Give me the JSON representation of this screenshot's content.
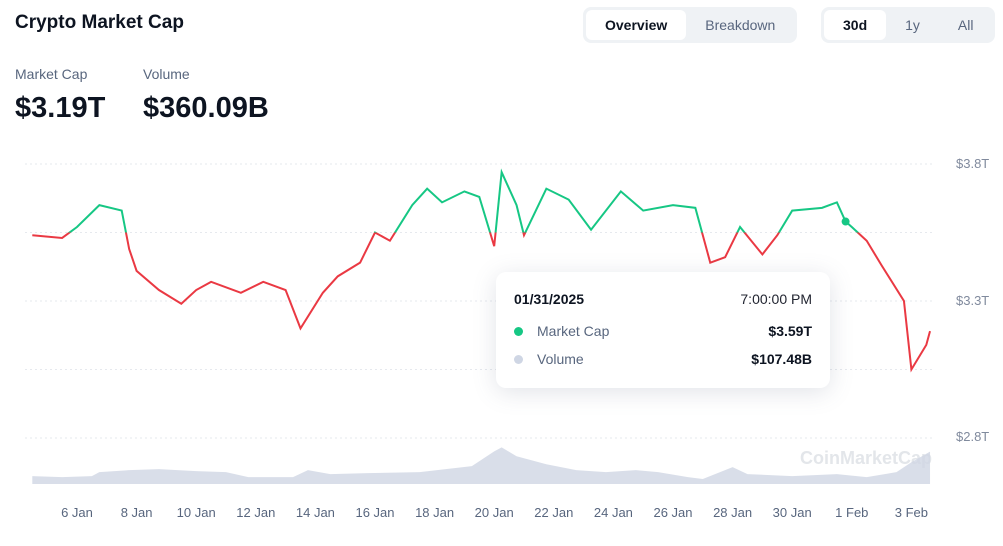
{
  "header": {
    "title": "Crypto Market Cap",
    "view_tabs": [
      {
        "label": "Overview",
        "active": true
      },
      {
        "label": "Breakdown",
        "active": false
      }
    ],
    "range_tabs": [
      {
        "label": "30d",
        "active": true
      },
      {
        "label": "1y",
        "active": false
      },
      {
        "label": "All",
        "active": false
      }
    ]
  },
  "stats": {
    "market_cap_label": "Market Cap",
    "market_cap_value": "$3.19T",
    "volume_label": "Volume",
    "volume_value": "$360.09B"
  },
  "tooltip": {
    "date": "01/31/2025",
    "time": "7:00:00 PM",
    "market_cap_label": "Market Cap",
    "market_cap_value": "$3.59T",
    "volume_label": "Volume",
    "volume_value": "$107.48B"
  },
  "watermark": "CoinMarketCap",
  "colors": {
    "up": "#16c784",
    "down": "#ea3943",
    "volume": "#cfd6e4",
    "grid": "#e6e9ee"
  },
  "chart_data": {
    "type": "line",
    "ylim": [
      2.8,
      3.8
    ],
    "yunit": "T",
    "yticks": [
      "$3.8T",
      "$3.3T",
      "$2.8T"
    ],
    "xticks": [
      "6 Jan",
      "8 Jan",
      "10 Jan",
      "12 Jan",
      "14 Jan",
      "16 Jan",
      "18 Jan",
      "20 Jan",
      "22 Jan",
      "24 Jan",
      "26 Jan",
      "28 Jan",
      "30 Jan",
      "1 Feb",
      "3 Feb"
    ],
    "baseline": 3.55,
    "series": [
      {
        "name": "Market Cap",
        "type": "line",
        "x": [
          "2025-01-04T12",
          "2025-01-05T12",
          "2025-01-06T00",
          "2025-01-06T18",
          "2025-01-07T12",
          "2025-01-07T18",
          "2025-01-08T00",
          "2025-01-08T18",
          "2025-01-09T12",
          "2025-01-10T00",
          "2025-01-10T12",
          "2025-01-11T12",
          "2025-01-12T06",
          "2025-01-13T00",
          "2025-01-13T12",
          "2025-01-14T06",
          "2025-01-14T18",
          "2025-01-15T12",
          "2025-01-16T00",
          "2025-01-16T12",
          "2025-01-17T06",
          "2025-01-17T18",
          "2025-01-18T06",
          "2025-01-19T00",
          "2025-01-19T12",
          "2025-01-20T00",
          "2025-01-20T06",
          "2025-01-20T18",
          "2025-01-21T00",
          "2025-01-21T18",
          "2025-01-22T12",
          "2025-01-23T06",
          "2025-01-24T06",
          "2025-01-25T00",
          "2025-01-26T00",
          "2025-01-26T18",
          "2025-01-27T06",
          "2025-01-27T18",
          "2025-01-28T06",
          "2025-01-29T00",
          "2025-01-29T12",
          "2025-01-30T00",
          "2025-01-31T00",
          "2025-01-31T12",
          "2025-01-31T19",
          "2025-02-01T00",
          "2025-02-01T12",
          "2025-02-02T00",
          "2025-02-02T18",
          "2025-02-03T00",
          "2025-02-03T12",
          "2025-02-03T15"
        ],
        "values": [
          3.54,
          3.53,
          3.57,
          3.65,
          3.63,
          3.49,
          3.41,
          3.34,
          3.29,
          3.34,
          3.37,
          3.33,
          3.37,
          3.34,
          3.2,
          3.33,
          3.39,
          3.44,
          3.55,
          3.52,
          3.65,
          3.71,
          3.66,
          3.7,
          3.68,
          3.5,
          3.77,
          3.65,
          3.54,
          3.71,
          3.67,
          3.56,
          3.7,
          3.63,
          3.65,
          3.64,
          3.44,
          3.46,
          3.57,
          3.47,
          3.54,
          3.63,
          3.64,
          3.66,
          3.59,
          3.57,
          3.52,
          3.43,
          3.3,
          3.05,
          3.14,
          3.19
        ]
      },
      {
        "name": "Volume",
        "type": "area",
        "unit": "B",
        "x": [
          "2025-01-04T12",
          "2025-01-05T12",
          "2025-01-06T12",
          "2025-01-06T18",
          "2025-01-07T18",
          "2025-01-08T18",
          "2025-01-10T00",
          "2025-01-11T00",
          "2025-01-11T18",
          "2025-01-13T06",
          "2025-01-13T18",
          "2025-01-14T12",
          "2025-01-15T18",
          "2025-01-17T12",
          "2025-01-19T06",
          "2025-01-20T00",
          "2025-01-20T06",
          "2025-01-20T18",
          "2025-01-21T18",
          "2025-01-22T18",
          "2025-01-23T18",
          "2025-01-24T18",
          "2025-01-25T12",
          "2025-01-26T12",
          "2025-01-27T00",
          "2025-01-28T00",
          "2025-01-28T12",
          "2025-01-30T00",
          "2025-01-31T12",
          "2025-02-01T12",
          "2025-02-02T12",
          "2025-02-03T00",
          "2025-02-03T15"
        ],
        "values": [
          88,
          77,
          88,
          132,
          154,
          165,
          143,
          132,
          77,
          77,
          154,
          110,
          121,
          132,
          198,
          363,
          407,
          308,
          220,
          154,
          132,
          154,
          132,
          77,
          55,
          187,
          110,
          88,
          110,
          77,
          132,
          242,
          360
        ]
      }
    ]
  }
}
